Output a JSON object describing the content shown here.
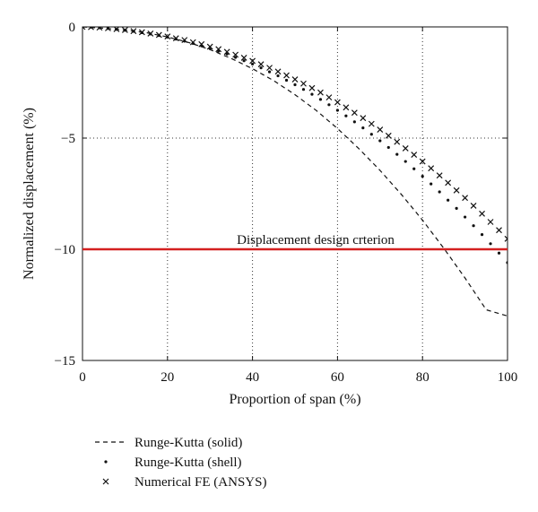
{
  "chart_data": {
    "type": "line",
    "title": "",
    "xlabel": "Proportion of span (%)",
    "ylabel": "Normalized displacement (%)",
    "xlim": [
      0,
      100
    ],
    "ylim": [
      -15,
      0
    ],
    "x_ticks": [
      0,
      20,
      40,
      60,
      80,
      100
    ],
    "x_tick_labels": [
      "0",
      "20",
      "40",
      "60",
      "80",
      "100"
    ],
    "y_ticks": [
      0,
      -5,
      -10,
      -15
    ],
    "y_tick_labels": [
      "0",
      "−5",
      "−10",
      "−15"
    ],
    "grid": "dotted",
    "legend_position": "bottom-left (below plot)",
    "series": [
      {
        "name": "Runge-Kutta (solid)",
        "style": "dashed-line",
        "color": "#111111",
        "x": [
          0,
          5,
          10,
          15,
          20,
          25,
          30,
          35,
          40,
          45,
          50,
          55,
          60,
          65,
          70,
          75,
          80,
          85,
          90,
          95,
          100
        ],
        "y": [
          0,
          -0.06,
          -0.14,
          -0.26,
          -0.45,
          -0.7,
          -1.02,
          -1.42,
          -1.88,
          -2.42,
          -3.05,
          -3.76,
          -4.57,
          -5.47,
          -6.45,
          -7.53,
          -8.69,
          -9.95,
          -11.29,
          -12.72,
          -13.0
        ]
      },
      {
        "name": "Runge-Kutta (shell)",
        "style": "dots",
        "color": "#111111",
        "x": [
          0,
          2,
          4,
          6,
          8,
          10,
          12,
          14,
          16,
          18,
          20,
          22,
          24,
          26,
          28,
          30,
          32,
          34,
          36,
          38,
          40,
          42,
          44,
          46,
          48,
          50,
          52,
          54,
          56,
          58,
          60,
          62,
          64,
          66,
          68,
          70,
          72,
          74,
          76,
          78,
          80,
          82,
          84,
          86,
          88,
          90,
          92,
          94,
          96,
          98,
          100
        ],
        "y": [
          0,
          -0.01,
          -0.04,
          -0.07,
          -0.11,
          -0.15,
          -0.2,
          -0.26,
          -0.32,
          -0.39,
          -0.46,
          -0.55,
          -0.64,
          -0.74,
          -0.85,
          -0.97,
          -1.09,
          -1.22,
          -1.37,
          -1.52,
          -1.67,
          -1.84,
          -2.02,
          -2.2,
          -2.4,
          -2.6,
          -2.81,
          -3.03,
          -3.26,
          -3.5,
          -3.75,
          -4.0,
          -4.27,
          -4.54,
          -4.83,
          -5.12,
          -5.42,
          -5.73,
          -6.05,
          -6.38,
          -6.72,
          -7.06,
          -7.42,
          -7.79,
          -8.16,
          -8.55,
          -8.94,
          -9.34,
          -9.75,
          -10.17,
          -10.6
        ]
      },
      {
        "name": "Numerical FE (ANSYS)",
        "style": "x-markers",
        "color": "#111111",
        "x": [
          0,
          2,
          4,
          6,
          8,
          10,
          12,
          14,
          16,
          18,
          20,
          22,
          24,
          26,
          28,
          30,
          32,
          34,
          36,
          38,
          40,
          42,
          44,
          46,
          48,
          50,
          52,
          54,
          56,
          58,
          60,
          62,
          64,
          66,
          68,
          70,
          72,
          74,
          76,
          78,
          80,
          82,
          84,
          86,
          88,
          90,
          92,
          94,
          96,
          98,
          100
        ],
        "y": [
          0,
          -0.01,
          -0.03,
          -0.06,
          -0.1,
          -0.14,
          -0.19,
          -0.24,
          -0.3,
          -0.36,
          -0.43,
          -0.51,
          -0.59,
          -0.69,
          -0.78,
          -0.89,
          -1.0,
          -1.12,
          -1.25,
          -1.39,
          -1.53,
          -1.68,
          -1.84,
          -2.01,
          -2.18,
          -2.36,
          -2.55,
          -2.75,
          -2.95,
          -3.17,
          -3.39,
          -3.62,
          -3.86,
          -4.1,
          -4.36,
          -4.62,
          -4.89,
          -5.17,
          -5.46,
          -5.75,
          -6.05,
          -6.36,
          -6.68,
          -7.01,
          -7.35,
          -7.69,
          -8.04,
          -8.4,
          -8.77,
          -9.14,
          -9.53
        ]
      }
    ],
    "reference_lines": [
      {
        "label": "Displacement design crterion",
        "y": -10,
        "color": "#d42020"
      }
    ]
  }
}
